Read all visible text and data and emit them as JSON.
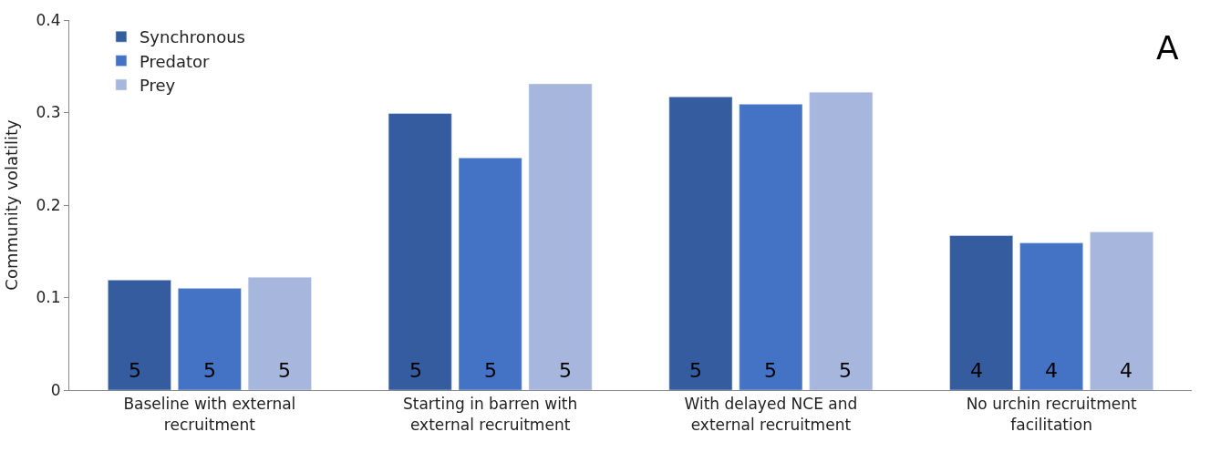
{
  "chart_data": {
    "type": "bar",
    "ylabel": "Community volatility",
    "categories": [
      "Baseline with external recruitment",
      "Starting in barren with external recruitment",
      "With delayed NCE and external recruitment",
      "No urchin recruitment facilitation"
    ],
    "series": [
      {
        "name": "Synchronous",
        "color": "#355c9f",
        "values": [
          0.119,
          0.299,
          0.317,
          0.167
        ]
      },
      {
        "name": "Predator",
        "color": "#4472c4",
        "values": [
          0.11,
          0.251,
          0.309,
          0.159
        ]
      },
      {
        "name": "Prey",
        "color": "#a6b6dc",
        "values": [
          0.122,
          0.331,
          0.322,
          0.171
        ]
      }
    ],
    "ylim": [
      0,
      0.4
    ],
    "yticks": [
      {
        "value": 0,
        "label": "0"
      },
      0.1,
      0.2,
      0.3,
      0.4
    ],
    "legend": "top left",
    "annotations": [
      "A",
      "5",
      "5",
      "5",
      "5",
      "5",
      "5",
      "5",
      "5",
      "5",
      "4",
      "4",
      "4"
    ]
  }
}
